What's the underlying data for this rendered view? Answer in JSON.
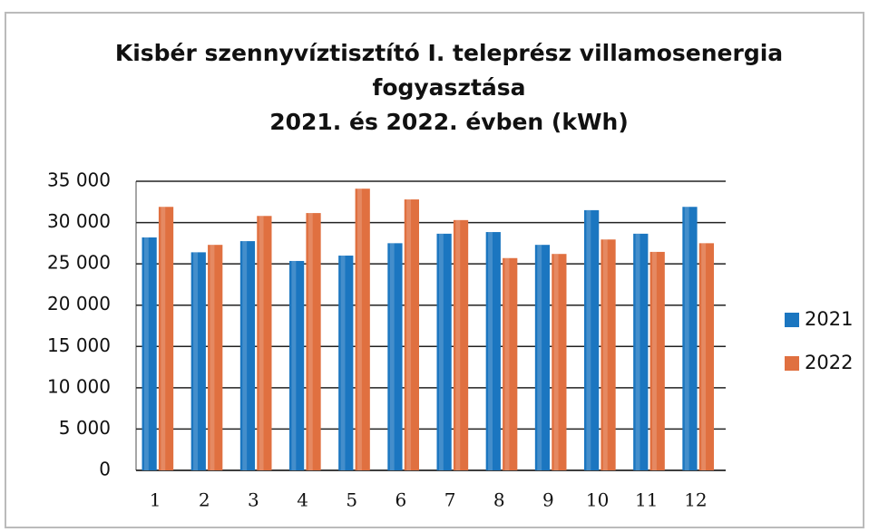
{
  "chart_data": {
    "type": "bar",
    "title": [
      "Kisbér szennyvíztisztító I. teleprész villamosenergia",
      "fogyasztása",
      "2021. és 2022. évben (kWh)"
    ],
    "categories": [
      "1",
      "2",
      "3",
      "4",
      "5",
      "6",
      "7",
      "8",
      "9",
      "10",
      "11",
      "12"
    ],
    "series": [
      {
        "name": "2021",
        "color": "#1b76c0",
        "values": [
          28200,
          26400,
          27750,
          25350,
          26000,
          27500,
          28650,
          28850,
          27300,
          31500,
          28650,
          31900
        ]
      },
      {
        "name": "2022",
        "color": "#e07040",
        "values": [
          31900,
          27300,
          30800,
          31150,
          34100,
          32800,
          30300,
          25700,
          26200,
          27950,
          26450,
          27500
        ]
      }
    ],
    "ylim": [
      0,
      35000
    ],
    "yticks": [
      0,
      {
        "value": 5000,
        "label": "5 000"
      },
      {
        "value": 10000,
        "label": "10 000"
      },
      {
        "value": 15000,
        "label": "15 000"
      },
      {
        "value": 20000,
        "label": "20 000"
      },
      {
        "value": 25000,
        "label": "25 000"
      },
      {
        "value": 30000,
        "label": "30 000"
      },
      {
        "value": 35000,
        "label": "35 000"
      }
    ],
    "grid": true,
    "legend": "right"
  }
}
